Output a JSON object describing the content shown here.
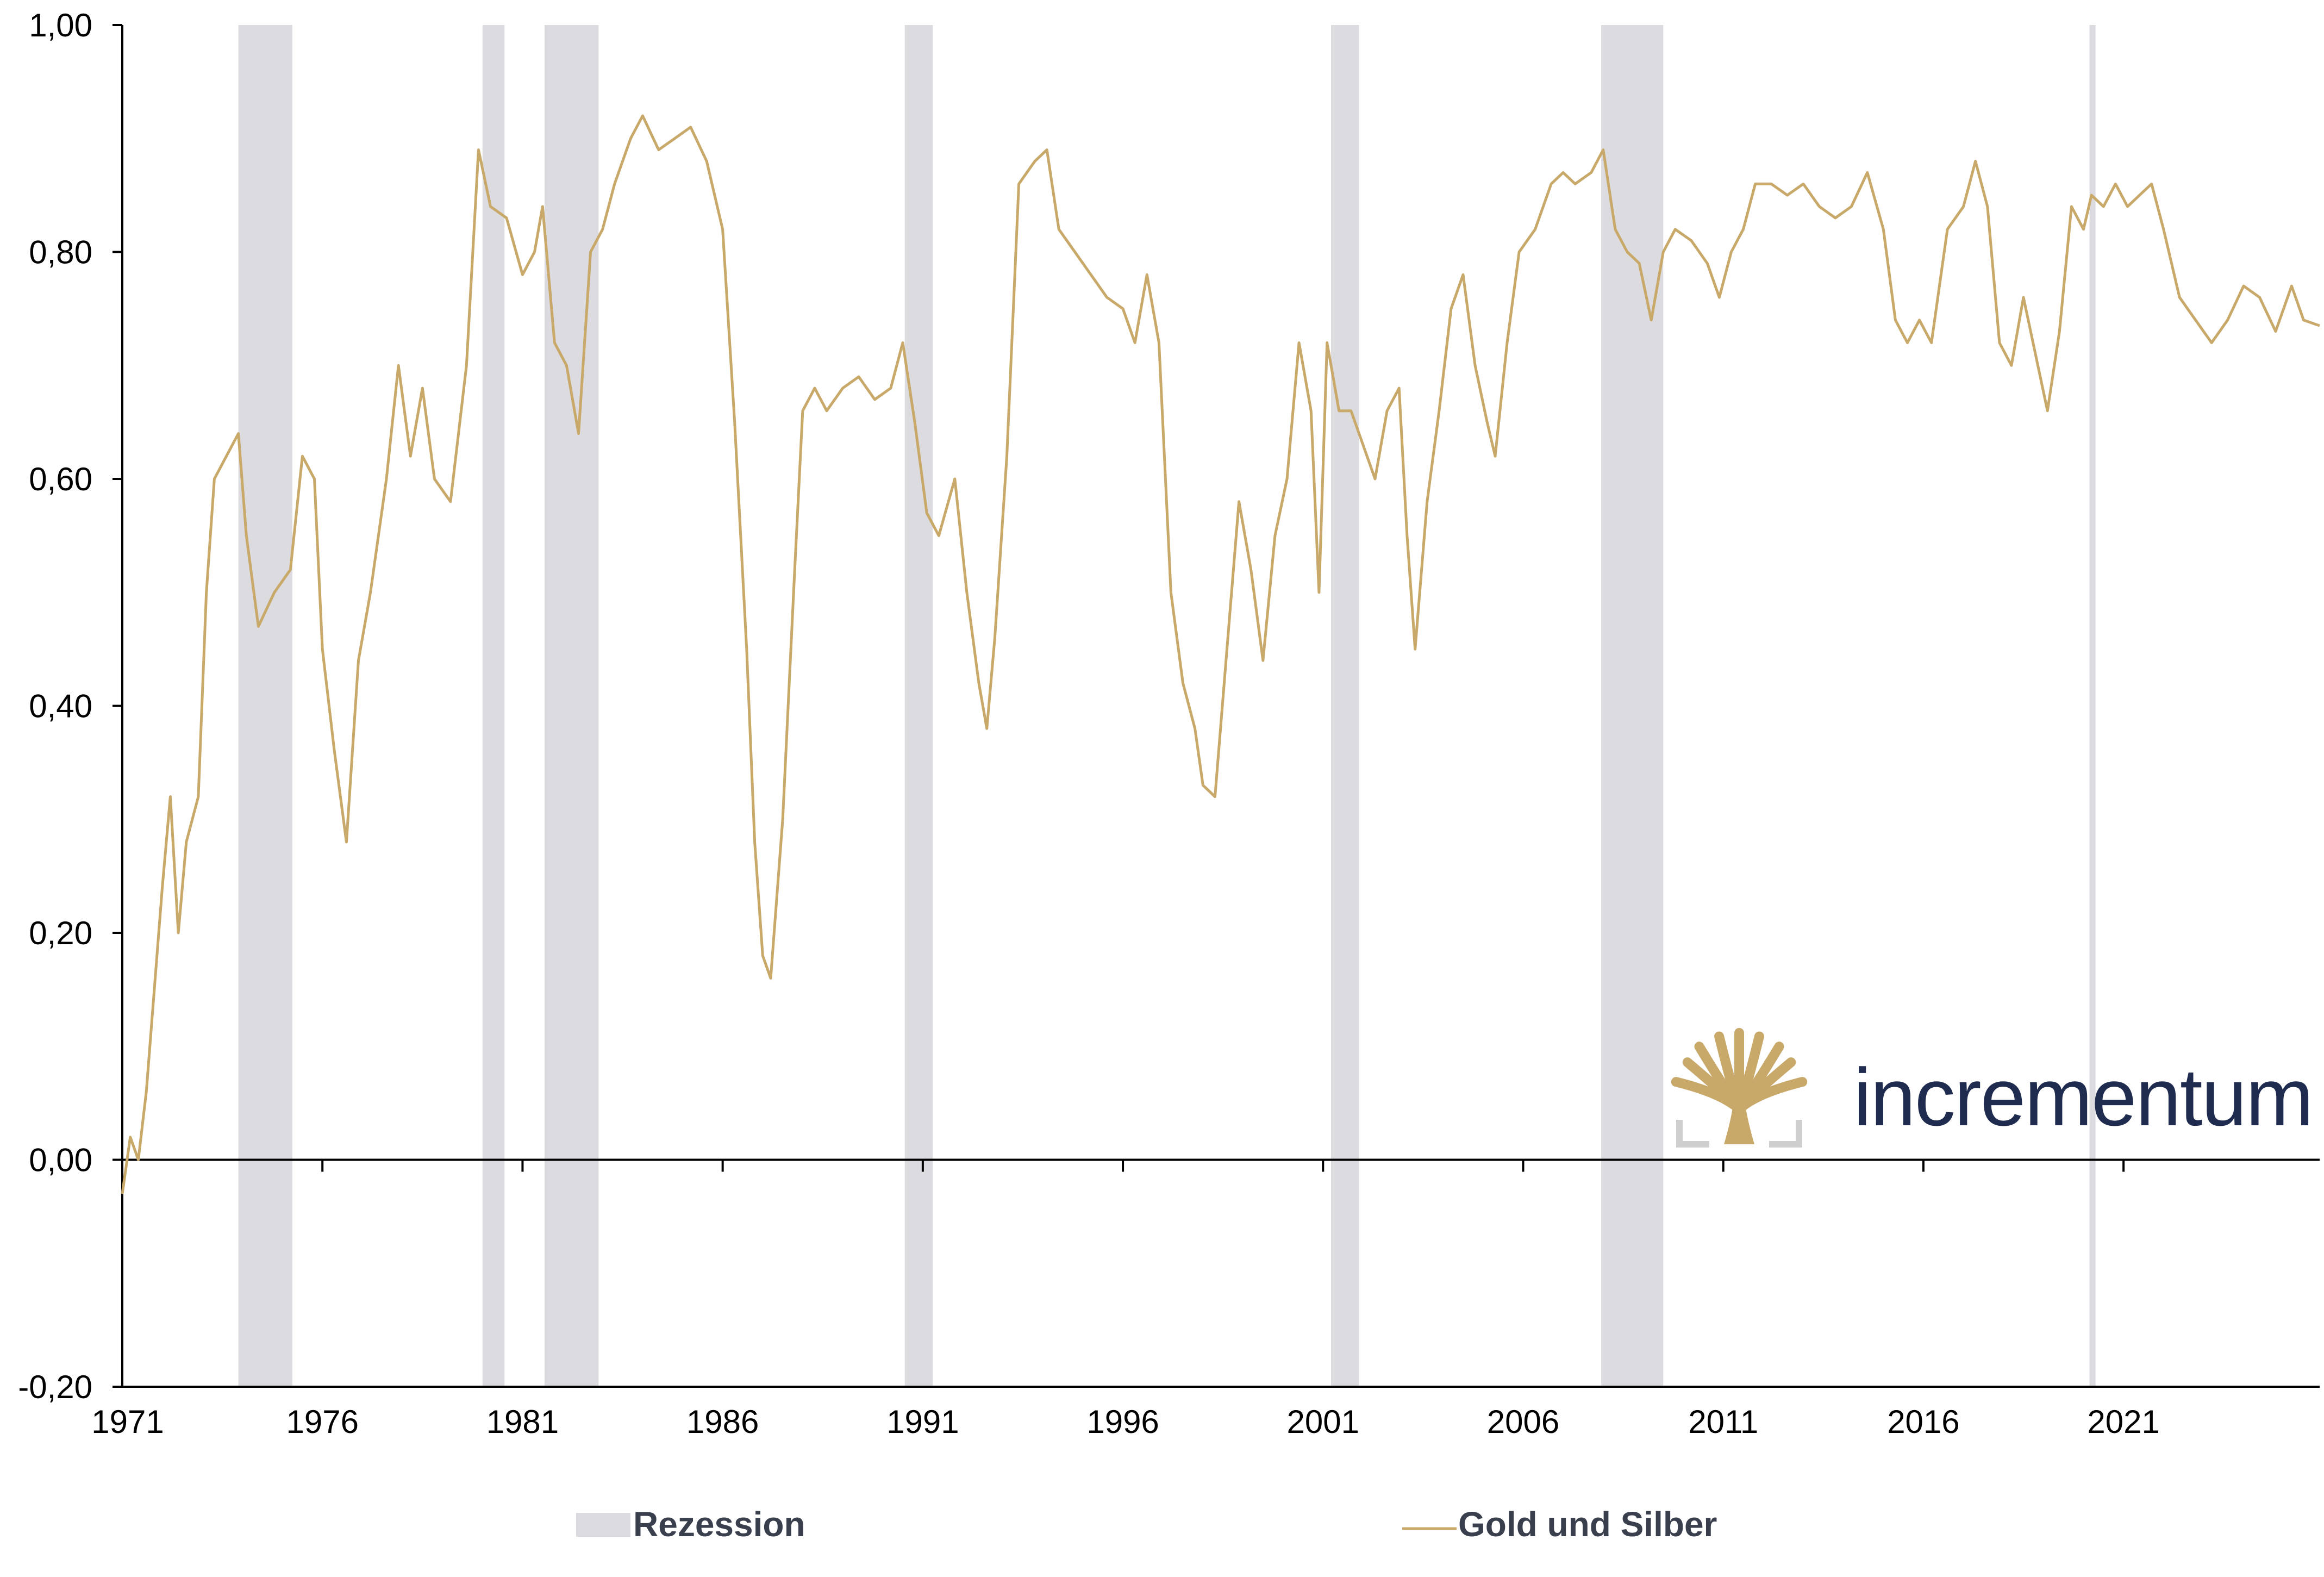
{
  "chart_data": {
    "type": "line",
    "title": "",
    "xlabel": "",
    "ylabel": "",
    "xlim": [
      1971,
      2025.9
    ],
    "ylim": [
      -0.2,
      1.0
    ],
    "x_ticks": [
      1971,
      1976,
      1981,
      1986,
      1991,
      1996,
      2001,
      2006,
      2011,
      2016,
      2021
    ],
    "x_tick_labels": [
      "1971",
      "1976",
      "1981",
      "1986",
      "1991",
      "1996",
      "2001",
      "2006",
      "2011",
      "2016",
      "2021"
    ],
    "y_ticks": [
      -0.2,
      0.0,
      0.2,
      0.4,
      0.6,
      0.8,
      1.0
    ],
    "y_tick_labels": [
      "-0,20",
      "0,00",
      "0,20",
      "0,40",
      "0,60",
      "0,80",
      "1,00"
    ],
    "grid": false,
    "legend_position": "bottom",
    "recessions": [
      {
        "start": 1973.9,
        "end": 1975.25
      },
      {
        "start": 1980.0,
        "end": 1980.55
      },
      {
        "start": 1981.55,
        "end": 1982.9
      },
      {
        "start": 1990.55,
        "end": 1991.25
      },
      {
        "start": 2001.2,
        "end": 2001.9
      },
      {
        "start": 2007.95,
        "end": 2009.5
      },
      {
        "start": 2020.15,
        "end": 2020.3
      }
    ],
    "series": [
      {
        "name": "Gold und Silber",
        "color": "#c8a96a",
        "points": [
          [
            1971.0,
            -0.03
          ],
          [
            1971.2,
            0.02
          ],
          [
            1971.4,
            0.0
          ],
          [
            1971.6,
            0.06
          ],
          [
            1971.8,
            0.15
          ],
          [
            1972.0,
            0.24
          ],
          [
            1972.2,
            0.32
          ],
          [
            1972.4,
            0.2
          ],
          [
            1972.6,
            0.28
          ],
          [
            1972.9,
            0.32
          ],
          [
            1973.1,
            0.5
          ],
          [
            1973.3,
            0.6
          ],
          [
            1973.6,
            0.62
          ],
          [
            1973.9,
            0.64
          ],
          [
            1974.1,
            0.55
          ],
          [
            1974.4,
            0.47
          ],
          [
            1974.8,
            0.5
          ],
          [
            1975.2,
            0.52
          ],
          [
            1975.5,
            0.62
          ],
          [
            1975.8,
            0.6
          ],
          [
            1976.0,
            0.45
          ],
          [
            1976.3,
            0.36
          ],
          [
            1976.6,
            0.28
          ],
          [
            1976.9,
            0.44
          ],
          [
            1977.2,
            0.5
          ],
          [
            1977.6,
            0.6
          ],
          [
            1977.9,
            0.7
          ],
          [
            1978.2,
            0.62
          ],
          [
            1978.5,
            0.68
          ],
          [
            1978.8,
            0.6
          ],
          [
            1979.2,
            0.58
          ],
          [
            1979.6,
            0.7
          ],
          [
            1979.9,
            0.89
          ],
          [
            1980.2,
            0.84
          ],
          [
            1980.6,
            0.83
          ],
          [
            1981.0,
            0.78
          ],
          [
            1981.3,
            0.8
          ],
          [
            1981.5,
            0.84
          ],
          [
            1981.8,
            0.72
          ],
          [
            1982.1,
            0.7
          ],
          [
            1982.4,
            0.64
          ],
          [
            1982.7,
            0.8
          ],
          [
            1983.0,
            0.82
          ],
          [
            1983.3,
            0.86
          ],
          [
            1983.7,
            0.9
          ],
          [
            1984.0,
            0.92
          ],
          [
            1984.4,
            0.89
          ],
          [
            1984.8,
            0.9
          ],
          [
            1985.2,
            0.91
          ],
          [
            1985.6,
            0.88
          ],
          [
            1986.0,
            0.82
          ],
          [
            1986.3,
            0.65
          ],
          [
            1986.6,
            0.45
          ],
          [
            1986.8,
            0.28
          ],
          [
            1987.0,
            0.18
          ],
          [
            1987.2,
            0.16
          ],
          [
            1987.5,
            0.3
          ],
          [
            1987.8,
            0.52
          ],
          [
            1988.0,
            0.66
          ],
          [
            1988.3,
            0.68
          ],
          [
            1988.6,
            0.66
          ],
          [
            1989.0,
            0.68
          ],
          [
            1989.4,
            0.69
          ],
          [
            1989.8,
            0.67
          ],
          [
            1990.2,
            0.68
          ],
          [
            1990.5,
            0.72
          ],
          [
            1990.8,
            0.65
          ],
          [
            1991.1,
            0.57
          ],
          [
            1991.4,
            0.55
          ],
          [
            1991.8,
            0.6
          ],
          [
            1992.1,
            0.5
          ],
          [
            1992.4,
            0.42
          ],
          [
            1992.6,
            0.38
          ],
          [
            1992.8,
            0.46
          ],
          [
            1993.1,
            0.62
          ],
          [
            1993.4,
            0.86
          ],
          [
            1993.8,
            0.88
          ],
          [
            1994.1,
            0.89
          ],
          [
            1994.4,
            0.82
          ],
          [
            1994.8,
            0.8
          ],
          [
            1995.2,
            0.78
          ],
          [
            1995.6,
            0.76
          ],
          [
            1996.0,
            0.75
          ],
          [
            1996.3,
            0.72
          ],
          [
            1996.6,
            0.78
          ],
          [
            1996.9,
            0.72
          ],
          [
            1997.2,
            0.5
          ],
          [
            1997.5,
            0.42
          ],
          [
            1997.8,
            0.38
          ],
          [
            1998.0,
            0.33
          ],
          [
            1998.3,
            0.32
          ],
          [
            1998.6,
            0.45
          ],
          [
            1998.9,
            0.58
          ],
          [
            1999.2,
            0.52
          ],
          [
            1999.5,
            0.44
          ],
          [
            1999.8,
            0.55
          ],
          [
            2000.1,
            0.6
          ],
          [
            2000.4,
            0.72
          ],
          [
            2000.7,
            0.66
          ],
          [
            2000.9,
            0.5
          ],
          [
            2001.1,
            0.72
          ],
          [
            2001.4,
            0.66
          ],
          [
            2001.7,
            0.66
          ],
          [
            2002.0,
            0.63
          ],
          [
            2002.3,
            0.6
          ],
          [
            2002.6,
            0.66
          ],
          [
            2002.9,
            0.68
          ],
          [
            2003.1,
            0.55
          ],
          [
            2003.3,
            0.45
          ],
          [
            2003.6,
            0.58
          ],
          [
            2003.9,
            0.66
          ],
          [
            2004.2,
            0.75
          ],
          [
            2004.5,
            0.78
          ],
          [
            2004.8,
            0.7
          ],
          [
            2005.1,
            0.65
          ],
          [
            2005.3,
            0.62
          ],
          [
            2005.6,
            0.72
          ],
          [
            2005.9,
            0.8
          ],
          [
            2006.3,
            0.82
          ],
          [
            2006.7,
            0.86
          ],
          [
            2007.0,
            0.87
          ],
          [
            2007.3,
            0.86
          ],
          [
            2007.7,
            0.87
          ],
          [
            2008.0,
            0.89
          ],
          [
            2008.3,
            0.82
          ],
          [
            2008.6,
            0.8
          ],
          [
            2008.9,
            0.79
          ],
          [
            2009.2,
            0.74
          ],
          [
            2009.5,
            0.8
          ],
          [
            2009.8,
            0.82
          ],
          [
            2010.2,
            0.81
          ],
          [
            2010.6,
            0.79
          ],
          [
            2010.9,
            0.76
          ],
          [
            2011.2,
            0.8
          ],
          [
            2011.5,
            0.82
          ],
          [
            2011.8,
            0.86
          ],
          [
            2012.2,
            0.86
          ],
          [
            2012.6,
            0.85
          ],
          [
            2013.0,
            0.86
          ],
          [
            2013.4,
            0.84
          ],
          [
            2013.8,
            0.83
          ],
          [
            2014.2,
            0.84
          ],
          [
            2014.6,
            0.87
          ],
          [
            2015.0,
            0.82
          ],
          [
            2015.3,
            0.74
          ],
          [
            2015.6,
            0.72
          ],
          [
            2015.9,
            0.74
          ],
          [
            2016.2,
            0.72
          ],
          [
            2016.6,
            0.82
          ],
          [
            2017.0,
            0.84
          ],
          [
            2017.3,
            0.88
          ],
          [
            2017.6,
            0.84
          ],
          [
            2017.9,
            0.72
          ],
          [
            2018.2,
            0.7
          ],
          [
            2018.5,
            0.76
          ],
          [
            2018.8,
            0.71
          ],
          [
            2019.1,
            0.66
          ],
          [
            2019.4,
            0.73
          ],
          [
            2019.7,
            0.84
          ],
          [
            2020.0,
            0.82
          ],
          [
            2020.2,
            0.85
          ],
          [
            2020.5,
            0.84
          ],
          [
            2020.8,
            0.86
          ],
          [
            2021.1,
            0.84
          ],
          [
            2021.4,
            0.85
          ],
          [
            2021.7,
            0.86
          ],
          [
            2022.0,
            0.82
          ],
          [
            2022.4,
            0.76
          ],
          [
            2022.8,
            0.74
          ],
          [
            2023.2,
            0.72
          ],
          [
            2023.6,
            0.74
          ],
          [
            2024.0,
            0.77
          ],
          [
            2024.4,
            0.76
          ],
          [
            2024.8,
            0.73
          ],
          [
            2025.2,
            0.77
          ],
          [
            2025.5,
            0.74
          ],
          [
            2025.9,
            0.735
          ]
        ]
      }
    ]
  },
  "legend": {
    "recession_label": "Rezession",
    "series_label": "Gold und Silber",
    "recession_color": "#dcdbdf",
    "series_color": "#c8a96a"
  },
  "logo": {
    "text": "incrementum",
    "icon": "tree-icon",
    "text_color": "#1f2b4f",
    "icon_color": "#c8a96a"
  }
}
